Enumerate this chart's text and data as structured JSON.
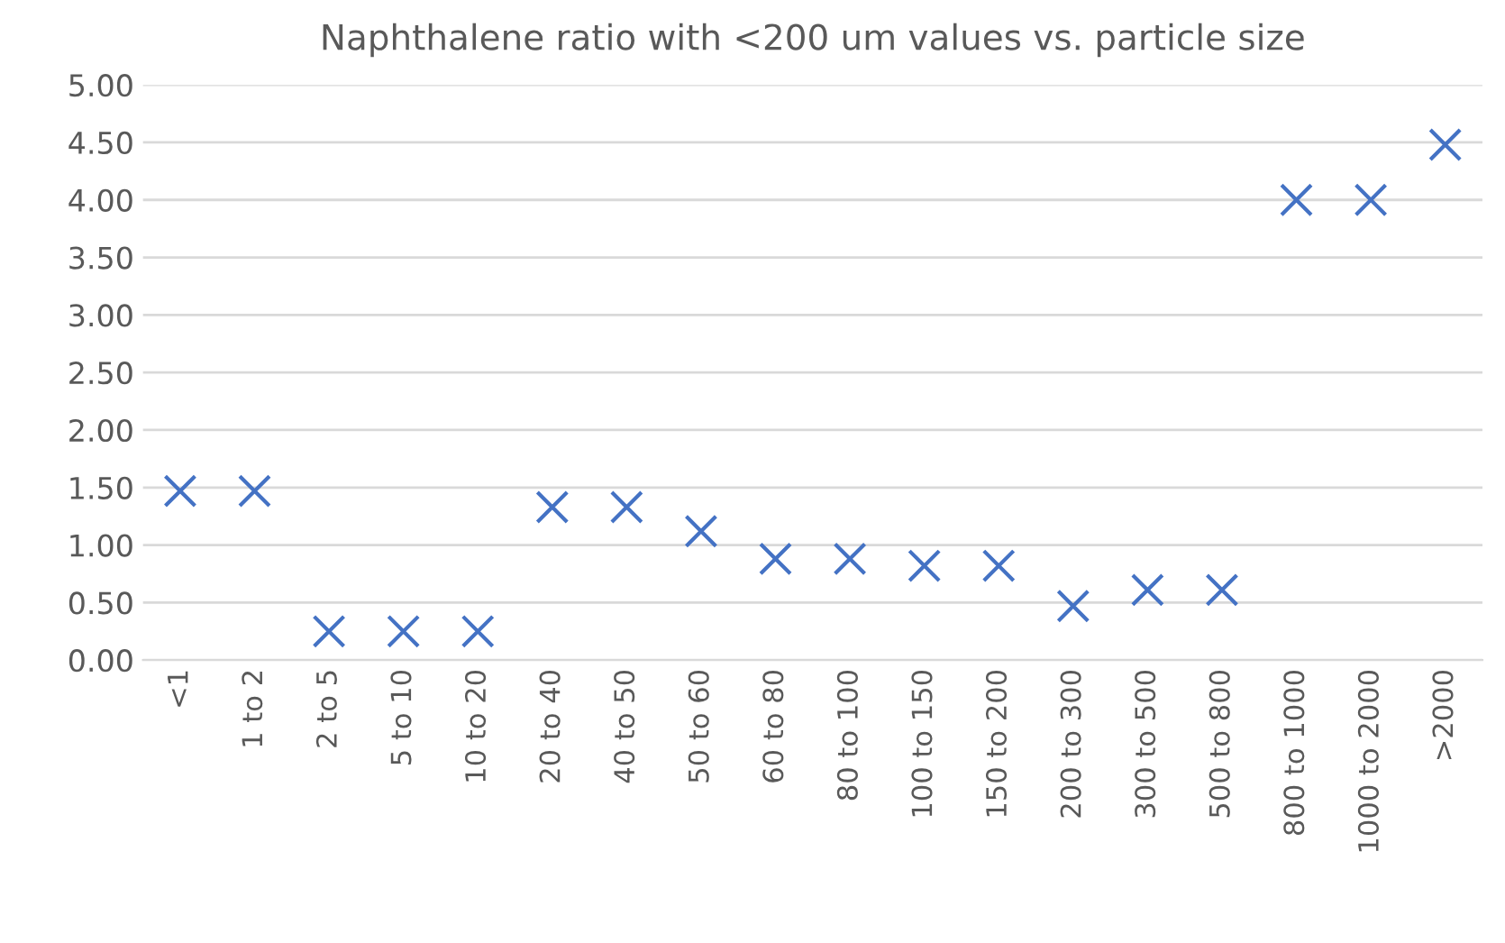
{
  "chart_data": {
    "type": "scatter",
    "title": "Naphthalene ratio with <200 um values vs. particle size",
    "categories": [
      "<1",
      "1 to 2",
      "2 to 5",
      "5 to 10",
      "10 to 20",
      "20 to 40",
      "40 to 50",
      "50 to 60",
      "60 to 80",
      "80 to 100",
      "100 to 150",
      "150 to 200",
      "200 to 300",
      "300 to 500",
      "500 to 800",
      "800 to 1000",
      "1000 to 2000",
      ">2000"
    ],
    "series": [
      {
        "color": "#4472c4",
        "values": [
          1.47,
          1.47,
          0.25,
          0.25,
          0.25,
          1.33,
          1.33,
          1.12,
          0.88,
          0.88,
          0.82,
          0.82,
          0.47,
          0.61,
          0.61,
          4.0,
          4.0,
          4.48
        ]
      }
    ],
    "ylim": [
      0,
      5
    ],
    "yticks": [
      {
        "value": 0,
        "label": "0.00"
      },
      {
        "value": 0.5,
        "label": "0.50"
      },
      {
        "value": 1,
        "label": "1.00"
      },
      {
        "value": 1.5,
        "label": "1.50"
      },
      {
        "value": 2,
        "label": "2.00"
      },
      {
        "value": 2.5,
        "label": "2.50"
      },
      {
        "value": 3,
        "label": "3.00"
      },
      {
        "value": 3.5,
        "label": "3.50"
      },
      {
        "value": 4,
        "label": "4.00"
      },
      {
        "value": 4.5,
        "label": "4.50"
      },
      {
        "value": 5,
        "label": "5.00"
      }
    ],
    "grid": "y",
    "marker": "cross",
    "legend": false
  }
}
